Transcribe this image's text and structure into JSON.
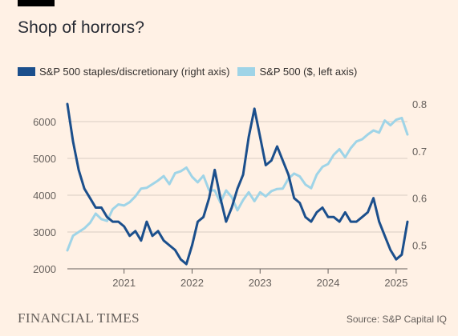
{
  "title": "Shop of horrors?",
  "legend": [
    {
      "label": "S&P 500 staples/discretionary (right axis)",
      "color": "#1b4f8c"
    },
    {
      "label": "S&P 500 ($, left axis)",
      "color": "#9fd4e7"
    }
  ],
  "footer": {
    "brand": "FINANCIAL TIMES",
    "source": "Source: S&P Capital IQ"
  },
  "colors": {
    "background": "#fff1e5",
    "grid": "#d9cdc2",
    "ratio_series": "#1b4f8c",
    "index_series": "#9fd4e7"
  },
  "chart_data": {
    "type": "line",
    "title": "Shop of horrors?",
    "x_range": [
      "2020-03",
      "2025-03"
    ],
    "x_ticks": [
      "2021",
      "2022",
      "2023",
      "2024",
      "2025"
    ],
    "left_axis": {
      "ticks": [
        "2000",
        "3000",
        "4000",
        "5000",
        "6000"
      ],
      "range": [
        2000,
        6000
      ]
    },
    "right_axis": {
      "ticks": [
        "0.5",
        "0.6",
        "0.7",
        "0.8"
      ],
      "range": [
        0.45,
        0.8
      ]
    },
    "grid": true,
    "series": [
      {
        "name": "S&P 500 staples/discretionary (right axis)",
        "axis": "right",
        "color": "#1b4f8c",
        "x": [
          "2020-03",
          "2020-04",
          "2020-05",
          "2020-06",
          "2020-07",
          "2020-08",
          "2020-09",
          "2020-10",
          "2020-11",
          "2020-12",
          "2021-01",
          "2021-02",
          "2021-03",
          "2021-04",
          "2021-05",
          "2021-06",
          "2021-07",
          "2021-08",
          "2021-09",
          "2021-10",
          "2021-11",
          "2021-12",
          "2022-01",
          "2022-02",
          "2022-03",
          "2022-04",
          "2022-05",
          "2022-06",
          "2022-07",
          "2022-08",
          "2022-09",
          "2022-10",
          "2022-11",
          "2022-12",
          "2023-01",
          "2023-02",
          "2023-03",
          "2023-04",
          "2023-05",
          "2023-06",
          "2023-07",
          "2023-08",
          "2023-09",
          "2023-10",
          "2023-11",
          "2023-12",
          "2024-01",
          "2024-02",
          "2024-03",
          "2024-04",
          "2024-05",
          "2024-06",
          "2024-07",
          "2024-08",
          "2024-09",
          "2024-10",
          "2024-11",
          "2024-12",
          "2025-01",
          "2025-02",
          "2025-03"
        ],
        "values": [
          0.8,
          0.72,
          0.66,
          0.62,
          0.6,
          0.58,
          0.58,
          0.56,
          0.55,
          0.55,
          0.54,
          0.52,
          0.53,
          0.51,
          0.55,
          0.52,
          0.53,
          0.51,
          0.5,
          0.49,
          0.47,
          0.46,
          0.5,
          0.55,
          0.56,
          0.6,
          0.66,
          0.6,
          0.55,
          0.58,
          0.62,
          0.65,
          0.73,
          0.79,
          0.73,
          0.67,
          0.68,
          0.71,
          0.68,
          0.65,
          0.6,
          0.59,
          0.56,
          0.55,
          0.57,
          0.58,
          0.56,
          0.56,
          0.55,
          0.57,
          0.55,
          0.55,
          0.56,
          0.57,
          0.6,
          0.55,
          0.52,
          0.49,
          0.47,
          0.48,
          0.55
        ]
      },
      {
        "name": "S&P 500 ($, left axis)",
        "axis": "left",
        "color": "#9fd4e7",
        "x": [
          "2020-03",
          "2020-04",
          "2020-05",
          "2020-06",
          "2020-07",
          "2020-08",
          "2020-09",
          "2020-10",
          "2020-11",
          "2020-12",
          "2021-01",
          "2021-02",
          "2021-03",
          "2021-04",
          "2021-05",
          "2021-06",
          "2021-07",
          "2021-08",
          "2021-09",
          "2021-10",
          "2021-11",
          "2021-12",
          "2022-01",
          "2022-02",
          "2022-03",
          "2022-04",
          "2022-05",
          "2022-06",
          "2022-07",
          "2022-08",
          "2022-09",
          "2022-10",
          "2022-11",
          "2022-12",
          "2023-01",
          "2023-02",
          "2023-03",
          "2023-04",
          "2023-05",
          "2023-06",
          "2023-07",
          "2023-08",
          "2023-09",
          "2023-10",
          "2023-11",
          "2023-12",
          "2024-01",
          "2024-02",
          "2024-03",
          "2024-04",
          "2024-05",
          "2024-06",
          "2024-07",
          "2024-08",
          "2024-09",
          "2024-10",
          "2024-11",
          "2024-12",
          "2025-01",
          "2025-02",
          "2025-03"
        ],
        "values": [
          2500,
          2900,
          3000,
          3100,
          3250,
          3500,
          3350,
          3300,
          3620,
          3750,
          3720,
          3810,
          3970,
          4180,
          4200,
          4300,
          4400,
          4520,
          4300,
          4600,
          4650,
          4750,
          4500,
          4350,
          4530,
          4130,
          4130,
          3800,
          4130,
          3950,
          3590,
          3870,
          4080,
          3840,
          4080,
          3970,
          4110,
          4170,
          4180,
          4450,
          4590,
          4510,
          4290,
          4190,
          4560,
          4770,
          4850,
          5100,
          5250,
          5030,
          5280,
          5460,
          5520,
          5650,
          5760,
          5700,
          6030,
          5900,
          6050,
          6100,
          5650
        ]
      }
    ]
  }
}
